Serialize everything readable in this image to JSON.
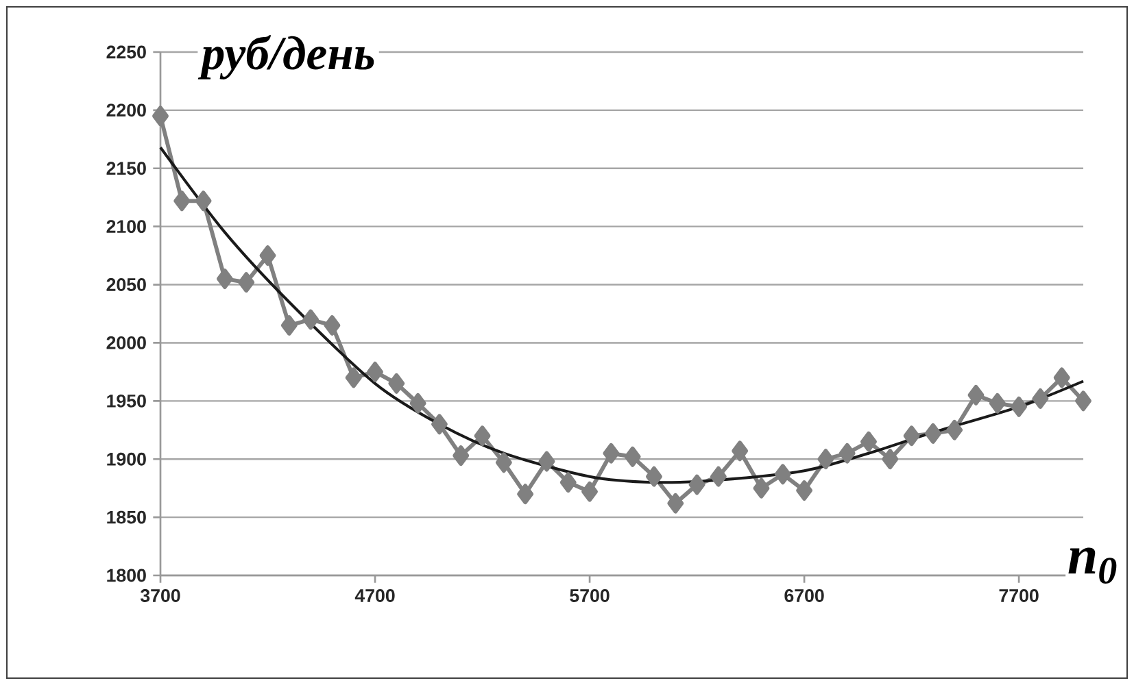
{
  "chart_data": {
    "type": "line",
    "ylabel": "руб/день",
    "xlabel": "n$_{0}$",
    "xlim": [
      3700,
      8000
    ],
    "xticks": [
      3700,
      4700,
      5700,
      6700,
      7700
    ],
    "ylim": [
      1800,
      2250
    ],
    "yticks": [
      1800,
      1850,
      1900,
      1950,
      2000,
      2050,
      2100,
      2150,
      2200,
      2250
    ],
    "grid": "y",
    "series": [
      {
        "color": "#808080",
        "marker": "diamond",
        "x": [
          3700,
          3800,
          3900,
          4000,
          4100,
          4200,
          4300,
          4400,
          4500,
          4600,
          4700,
          4800,
          4900,
          5000,
          5100,
          5200,
          5300,
          5400,
          5500,
          5600,
          5700,
          5800,
          5900,
          6000,
          6100,
          6200,
          6300,
          6400,
          6500,
          6600,
          6700,
          6800,
          6900,
          7000,
          7100,
          7200,
          7300,
          7400,
          7500,
          7600,
          7700,
          7800,
          7900,
          8000
        ],
        "values": [
          2195,
          2122,
          2122,
          2055,
          2052,
          2075,
          2015,
          2020,
          2015,
          1970,
          1975,
          1965,
          1948,
          1930,
          1903,
          1920,
          1897,
          1870,
          1898,
          1880,
          1872,
          1905,
          1902,
          1885,
          1862,
          1878,
          1885,
          1907,
          1875,
          1887,
          1873,
          1900,
          1905,
          1915,
          1900,
          1920,
          1922,
          1925,
          1955,
          1948,
          1945,
          1952,
          1970,
          1950
        ]
      },
      {
        "color": "#1a1a1a",
        "marker": "none",
        "x": [
          3700,
          4000,
          4300,
          4700,
          5000,
          5300,
          5700,
          6000,
          6300,
          6700,
          7000,
          7300,
          7700,
          8000
        ],
        "values": [
          2168,
          2095,
          2035,
          1965,
          1930,
          1905,
          1885,
          1880,
          1882,
          1890,
          1905,
          1923,
          1945,
          1967
        ]
      }
    ]
  }
}
